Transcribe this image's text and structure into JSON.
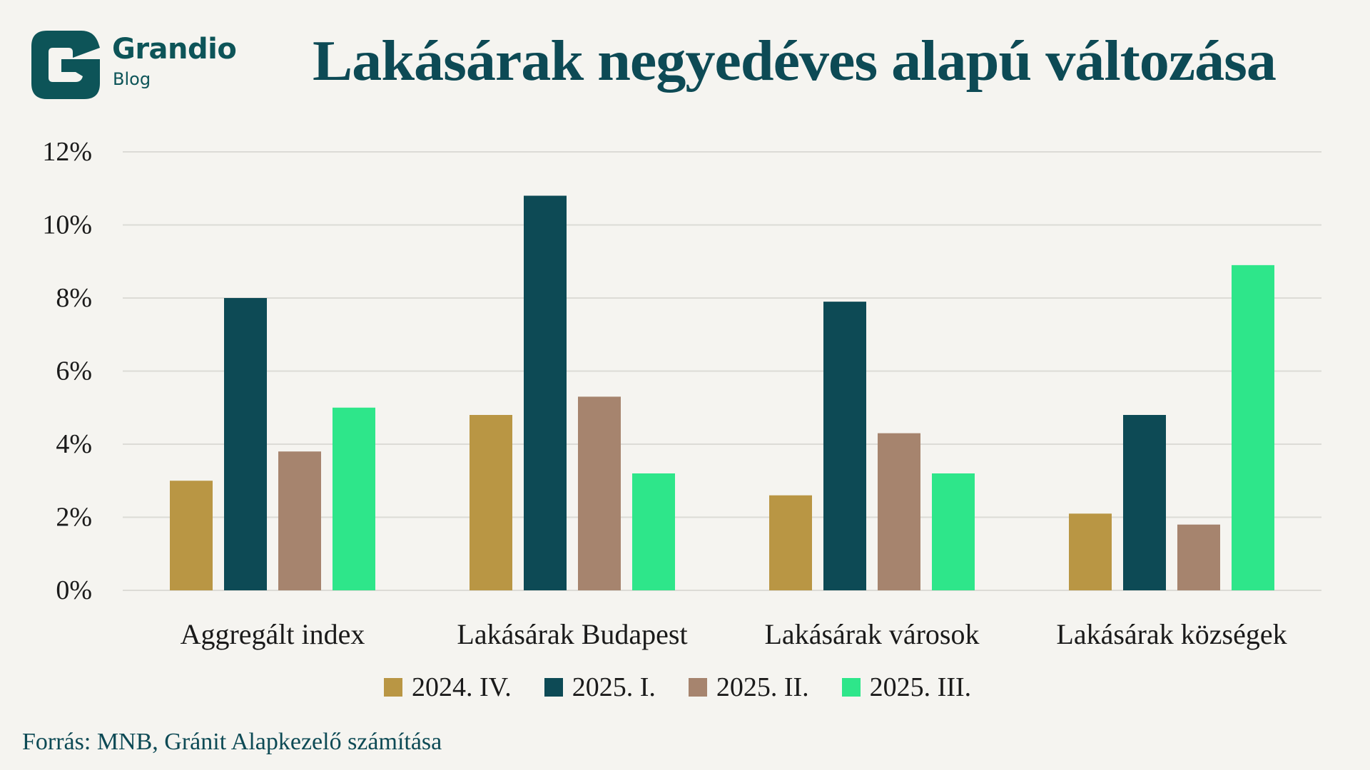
{
  "brand": {
    "name": "Grandio",
    "sub": "Blog",
    "color": "#0d5458",
    "icon": "grandio-g-logo"
  },
  "source": "Forrás: MNB, Gránit Alapkezelő számítása",
  "chart_data": {
    "type": "bar",
    "title": "Lakásárak negyedéves alapú változása",
    "xlabel": "",
    "ylabel": "",
    "ylim": [
      0,
      12
    ],
    "yticks": [
      0,
      2,
      4,
      6,
      8,
      10,
      12
    ],
    "ytick_labels": [
      "0%",
      "2%",
      "4%",
      "6%",
      "8%",
      "10%",
      "12%"
    ],
    "grid": true,
    "legend_position": "bottom",
    "categories": [
      "Aggregált index",
      "Lakásárak Budapest",
      "Lakásárak városok",
      "Lakásárak községek"
    ],
    "series": [
      {
        "name": "2024. IV.",
        "color": "#b99644",
        "values": [
          3.0,
          4.8,
          2.6,
          2.1
        ]
      },
      {
        "name": "2025. I.",
        "color": "#0d4a55",
        "values": [
          8.0,
          10.8,
          7.9,
          4.8
        ]
      },
      {
        "name": "2025. II.",
        "color": "#a6846e",
        "values": [
          3.8,
          5.3,
          4.3,
          1.8
        ]
      },
      {
        "name": "2025. III.",
        "color": "#2ee68a",
        "values": [
          5.0,
          3.2,
          3.2,
          8.9
        ]
      }
    ]
  }
}
